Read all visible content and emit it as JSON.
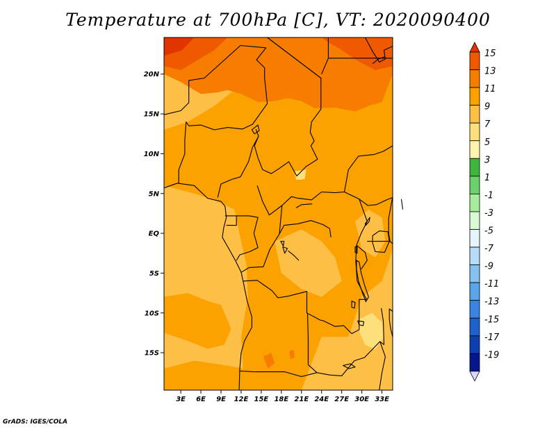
{
  "title": "Temperature at 700hPa [C], VT: 2020090400",
  "credit": "GrADS: IGES/COLA",
  "map": {
    "lat_ticks": [
      {
        "label": "20N",
        "value": 20
      },
      {
        "label": "15N",
        "value": 15
      },
      {
        "label": "10N",
        "value": 10
      },
      {
        "label": "5N",
        "value": 5
      },
      {
        "label": "EQ",
        "value": 0
      },
      {
        "label": "5S",
        "value": -5
      },
      {
        "label": "10S",
        "value": -10
      },
      {
        "label": "15S",
        "value": -15
      }
    ],
    "lon_ticks": [
      {
        "label": "3E",
        "value": 3
      },
      {
        "label": "6E",
        "value": 6
      },
      {
        "label": "9E",
        "value": 9
      },
      {
        "label": "12E",
        "value": 12
      },
      {
        "label": "15E",
        "value": 15
      },
      {
        "label": "18E",
        "value": 18
      },
      {
        "label": "21E",
        "value": 21
      },
      {
        "label": "24E",
        "value": 24
      },
      {
        "label": "27E",
        "value": 27
      },
      {
        "label": "30E",
        "value": 30
      },
      {
        "label": "33E",
        "value": 33
      }
    ],
    "lon_range": [
      0.5,
      34.6
    ],
    "lat_range": [
      -19.7,
      24.6
    ],
    "colors": {
      "c7": "#fdbf45",
      "c9": "#fba100",
      "c11": "#f77d00",
      "c13": "#ef5a00",
      "c15": "#e23400",
      "c5": "#fde07c",
      "c3": "#fff4ae",
      "border": "#000000"
    }
  },
  "colorbar": {
    "labels": [
      "15",
      "13",
      "11",
      "9",
      "7",
      "5",
      "3",
      "1",
      "-1",
      "-3",
      "-5",
      "-7",
      "-9",
      "-11",
      "-13",
      "-15",
      "-17",
      "-19"
    ],
    "colors": [
      "#e23400",
      "#ef5a00",
      "#f77d00",
      "#fba100",
      "#fdbf45",
      "#fde07c",
      "#fff4ae",
      "#3fb43f",
      "#6bd26b",
      "#a5ec9d",
      "#d9f9d3",
      "#e6f4fc",
      "#b6dcf8",
      "#84c2f2",
      "#5aa5ea",
      "#3985e0",
      "#1e62c8",
      "#0d3fae",
      "#05188a",
      "#dcd5ff"
    ],
    "max": 15,
    "step": 2
  }
}
